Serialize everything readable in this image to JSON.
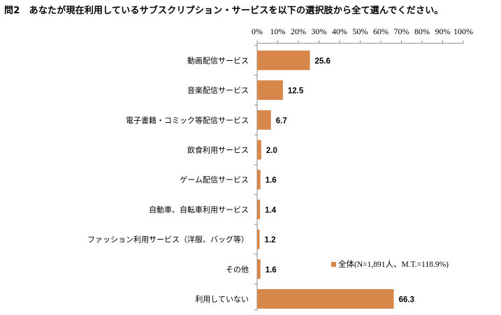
{
  "title": "問2　あなたが現在利用しているサブスクリプション・サービスを以下の選択肢から全て選んでください。",
  "chart_data": {
    "type": "bar",
    "orientation": "horizontal",
    "categories": [
      "動画配信サービス",
      "音楽配信サービス",
      "電子書籍・コミック等配信サービス",
      "飲食利用サービス",
      "ゲーム配信サービス",
      "自動車、自転車利用サービス",
      "ファッション利用サービス（洋服、バッグ等）",
      "その他",
      "利用していない"
    ],
    "series": [
      {
        "name": "全体(N=1,891人、M.T.=118.9%)",
        "values": [
          25.6,
          12.5,
          6.7,
          2.0,
          1.6,
          1.4,
          1.2,
          1.6,
          66.3
        ]
      }
    ],
    "value_labels": [
      "25.6",
      "12.5",
      "6.7",
      "2.0",
      "1.6",
      "1.4",
      "1.2",
      "1.6",
      "66.3"
    ],
    "xlim": [
      0,
      100
    ],
    "xticks": [
      0,
      10,
      20,
      30,
      40,
      50,
      60,
      70,
      80,
      90,
      100
    ],
    "tick_suffix": "%",
    "axis_position": "top",
    "grid": false,
    "legend_position": "lower-right",
    "bar_color": "#d7874a"
  }
}
